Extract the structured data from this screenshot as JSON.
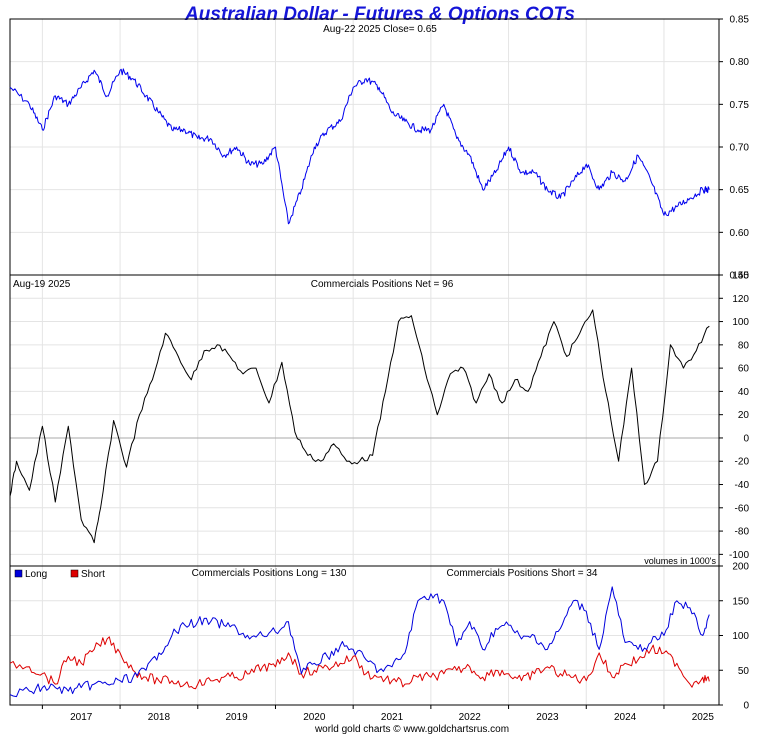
{
  "title": "Australian Dollar - Futures & Options COTs",
  "credit": "world gold charts © www.goldchartsrus.com",
  "colors": {
    "price": "#0000ee",
    "net": "#000000",
    "long": "#0000dd",
    "short": "#dd0000",
    "grid": "#e4e4e4",
    "title": "#1515d8"
  },
  "x_axis": {
    "labels": [
      "2017",
      "2018",
      "2019",
      "2020",
      "2021",
      "2022",
      "2023",
      "2024",
      "2025"
    ]
  },
  "panels": {
    "price": {
      "header": "Aug-22  2025   Close= 0.65",
      "y_ticks": [
        "0.85",
        "0.80",
        "0.75",
        "0.70",
        "0.65",
        "0.60",
        "0.55"
      ]
    },
    "net": {
      "date_label": "Aug-19  2025",
      "header": "Commercials Positions Net = 96",
      "note": "volumes in 1000's",
      "y_ticks": [
        "140",
        "120",
        "100",
        "80",
        "60",
        "40",
        "20",
        "0",
        "-20",
        "-40",
        "-60",
        "-80",
        "-100"
      ]
    },
    "lsh": {
      "legend": {
        "long": "Long",
        "short": "Short"
      },
      "header_long": "Commercials Positions Long = 130",
      "header_short": "Commercials Positions Short = 34",
      "y_ticks": [
        "200",
        "150",
        "100",
        "50",
        "0"
      ]
    }
  },
  "chart_data": [
    {
      "type": "line",
      "name": "price",
      "title": "Australian Dollar - Futures & Options COTs",
      "x": [
        "2016-08",
        "2016-11",
        "2017-01",
        "2017-03",
        "2017-05",
        "2017-07",
        "2017-09",
        "2017-11",
        "2018-01",
        "2018-03",
        "2018-05",
        "2018-07",
        "2018-09",
        "2018-11",
        "2019-01",
        "2019-03",
        "2019-05",
        "2019-07",
        "2019-09",
        "2019-11",
        "2020-01",
        "2020-03",
        "2020-05",
        "2020-07",
        "2020-09",
        "2020-11",
        "2021-01",
        "2021-03",
        "2021-05",
        "2021-07",
        "2021-09",
        "2021-11",
        "2022-01",
        "2022-03",
        "2022-05",
        "2022-07",
        "2022-09",
        "2022-11",
        "2023-01",
        "2023-03",
        "2023-05",
        "2023-07",
        "2023-09",
        "2023-11",
        "2024-01",
        "2024-03",
        "2024-05",
        "2024-07",
        "2024-09",
        "2024-11",
        "2025-01",
        "2025-03",
        "2025-05",
        "2025-07",
        "2025-08"
      ],
      "values": [
        0.77,
        0.75,
        0.72,
        0.76,
        0.75,
        0.77,
        0.79,
        0.76,
        0.79,
        0.78,
        0.76,
        0.74,
        0.72,
        0.72,
        0.71,
        0.71,
        0.69,
        0.7,
        0.68,
        0.68,
        0.7,
        0.61,
        0.65,
        0.7,
        0.72,
        0.73,
        0.77,
        0.78,
        0.77,
        0.74,
        0.73,
        0.72,
        0.72,
        0.75,
        0.71,
        0.69,
        0.65,
        0.67,
        0.7,
        0.67,
        0.67,
        0.65,
        0.64,
        0.66,
        0.68,
        0.65,
        0.67,
        0.66,
        0.69,
        0.66,
        0.62,
        0.63,
        0.64,
        0.65,
        0.65
      ],
      "ylim": [
        0.55,
        0.85
      ]
    },
    {
      "type": "line",
      "name": "net",
      "title": "Commercials Positions Net = 96",
      "x": [
        "2016-08",
        "2016-09",
        "2016-11",
        "2017-01",
        "2017-03",
        "2017-05",
        "2017-07",
        "2017-09",
        "2017-10",
        "2017-12",
        "2018-02",
        "2018-04",
        "2018-06",
        "2018-08",
        "2018-10",
        "2018-12",
        "2019-02",
        "2019-04",
        "2019-06",
        "2019-08",
        "2019-10",
        "2019-12",
        "2020-02",
        "2020-04",
        "2020-06",
        "2020-08",
        "2020-10",
        "2020-12",
        "2021-02",
        "2021-04",
        "2021-06",
        "2021-08",
        "2021-10",
        "2021-12",
        "2022-02",
        "2022-04",
        "2022-06",
        "2022-08",
        "2022-10",
        "2022-12",
        "2023-02",
        "2023-04",
        "2023-06",
        "2023-08",
        "2023-10",
        "2023-12",
        "2024-02",
        "2024-04",
        "2024-06",
        "2024-08",
        "2024-10",
        "2024-12",
        "2025-02",
        "2025-04",
        "2025-06",
        "2025-08"
      ],
      "values": [
        -50,
        -20,
        -45,
        10,
        -55,
        10,
        -70,
        -90,
        -60,
        15,
        -25,
        20,
        50,
        90,
        70,
        50,
        75,
        80,
        70,
        55,
        60,
        30,
        65,
        5,
        -15,
        -20,
        -5,
        -20,
        -20,
        -15,
        40,
        100,
        105,
        60,
        20,
        55,
        60,
        30,
        55,
        30,
        50,
        40,
        70,
        100,
        70,
        90,
        110,
        40,
        -20,
        60,
        -40,
        -20,
        80,
        60,
        75,
        96
      ],
      "ylim": [
        -110,
        140
      ]
    },
    {
      "type": "line",
      "name": "long-short",
      "x": [
        "2016-08",
        "2016-11",
        "2017-01",
        "2017-03",
        "2017-05",
        "2017-07",
        "2017-09",
        "2017-11",
        "2018-01",
        "2018-03",
        "2018-05",
        "2018-07",
        "2018-09",
        "2018-11",
        "2019-01",
        "2019-03",
        "2019-05",
        "2019-07",
        "2019-09",
        "2019-11",
        "2020-01",
        "2020-03",
        "2020-05",
        "2020-07",
        "2020-09",
        "2020-11",
        "2021-01",
        "2021-03",
        "2021-05",
        "2021-07",
        "2021-09",
        "2021-11",
        "2022-01",
        "2022-03",
        "2022-05",
        "2022-07",
        "2022-09",
        "2022-11",
        "2023-01",
        "2023-03",
        "2023-05",
        "2023-07",
        "2023-09",
        "2023-11",
        "2024-01",
        "2024-03",
        "2024-05",
        "2024-07",
        "2024-09",
        "2024-11",
        "2025-01",
        "2025-03",
        "2025-05",
        "2025-07",
        "2025-08"
      ],
      "series": [
        {
          "name": "Long",
          "values": [
            15,
            20,
            25,
            25,
            20,
            25,
            30,
            30,
            35,
            40,
            50,
            75,
            100,
            115,
            120,
            120,
            115,
            110,
            95,
            100,
            105,
            120,
            45,
            60,
            70,
            85,
            80,
            65,
            50,
            55,
            75,
            150,
            160,
            150,
            85,
            120,
            80,
            110,
            115,
            95,
            100,
            80,
            110,
            150,
            135,
            80,
            170,
            90,
            80,
            90,
            100,
            150,
            140,
            100,
            130
          ]
        },
        {
          "name": "Short",
          "values": [
            60,
            55,
            45,
            30,
            70,
            60,
            80,
            95,
            75,
            50,
            40,
            35,
            35,
            30,
            30,
            35,
            40,
            40,
            45,
            55,
            55,
            75,
            45,
            50,
            55,
            60,
            70,
            45,
            40,
            35,
            30,
            40,
            40,
            45,
            50,
            55,
            40,
            50,
            45,
            35,
            45,
            55,
            45,
            40,
            35,
            75,
            40,
            60,
            65,
            80,
            75,
            60,
            30,
            40,
            34
          ]
        }
      ],
      "ylim": [
        0,
        200
      ]
    }
  ]
}
